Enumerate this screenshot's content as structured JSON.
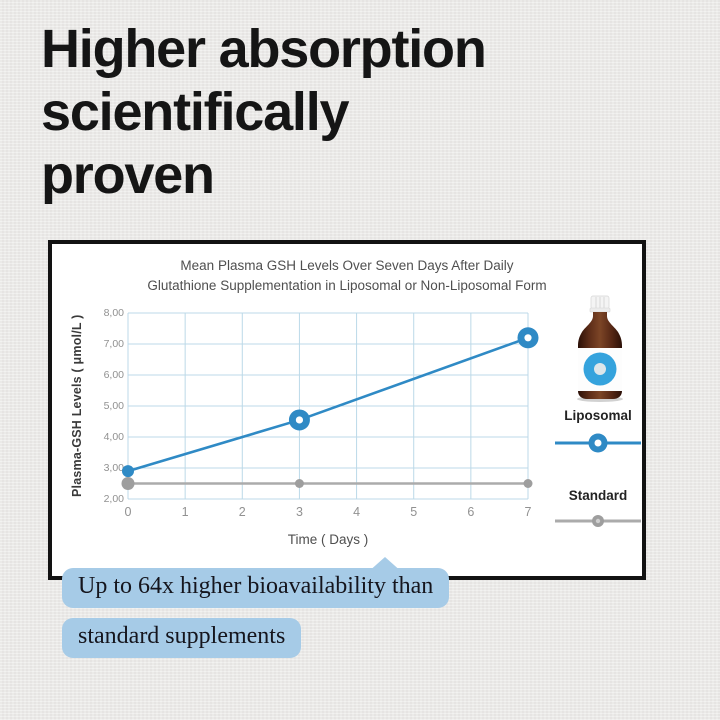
{
  "page": {
    "background": "#ebeae8"
  },
  "heading": {
    "lines": [
      "Higher absorption",
      "scientifically",
      "proven"
    ]
  },
  "chart_card": {
    "title_lines": [
      "Mean Plasma GSH Levels Over Seven Days After Daily",
      "Glutathione Supplementation in Liposomal or Non-Liposomal Form"
    ]
  },
  "chart_data": {
    "type": "line",
    "title": "Mean Plasma GSH Levels Over Seven Days After Daily Glutathione Supplementation in Liposomal or Non-Liposomal Form",
    "xlabel": "Time ( Days )",
    "ylabel": "Plasma-GSH Levels ( μmol/L )",
    "x_ticks": [
      "0",
      "1",
      "2",
      "3",
      "4",
      "5",
      "6",
      "7"
    ],
    "y_ticks": [
      "8,00",
      "7,00",
      "6,00",
      "5,00",
      "4,00",
      "3,00",
      "2,00"
    ],
    "xlim": [
      0,
      7
    ],
    "ylim": [
      2,
      8
    ],
    "grid": true,
    "legend_position": "right",
    "series": [
      {
        "name": "Liposomal",
        "color": "#2f8ac5",
        "x": [
          0,
          3,
          7
        ],
        "values": [
          2.9,
          4.55,
          7.2
        ]
      },
      {
        "name": "Standard",
        "color": "#ababab",
        "marker_color": "#9e9e9e",
        "x": [
          0,
          3,
          7
        ],
        "values": [
          2.5,
          2.5,
          2.5
        ]
      }
    ]
  },
  "callout": {
    "line1": "Up to 64x higher bioavailability than",
    "line2": "standard supplements",
    "bubble_color": "#a6cbe7",
    "text_color": "#15151d"
  },
  "colors": {
    "background": "#ebeae8",
    "heading_text": "#151515",
    "card_border": "#121212",
    "grid": "#bcd9e8",
    "liposomal_blue": "#2f8ac5",
    "standard_gray": "#ababab",
    "bottle_label_blue": "#35a3dd",
    "bubble_blue": "#a6cbe7"
  }
}
